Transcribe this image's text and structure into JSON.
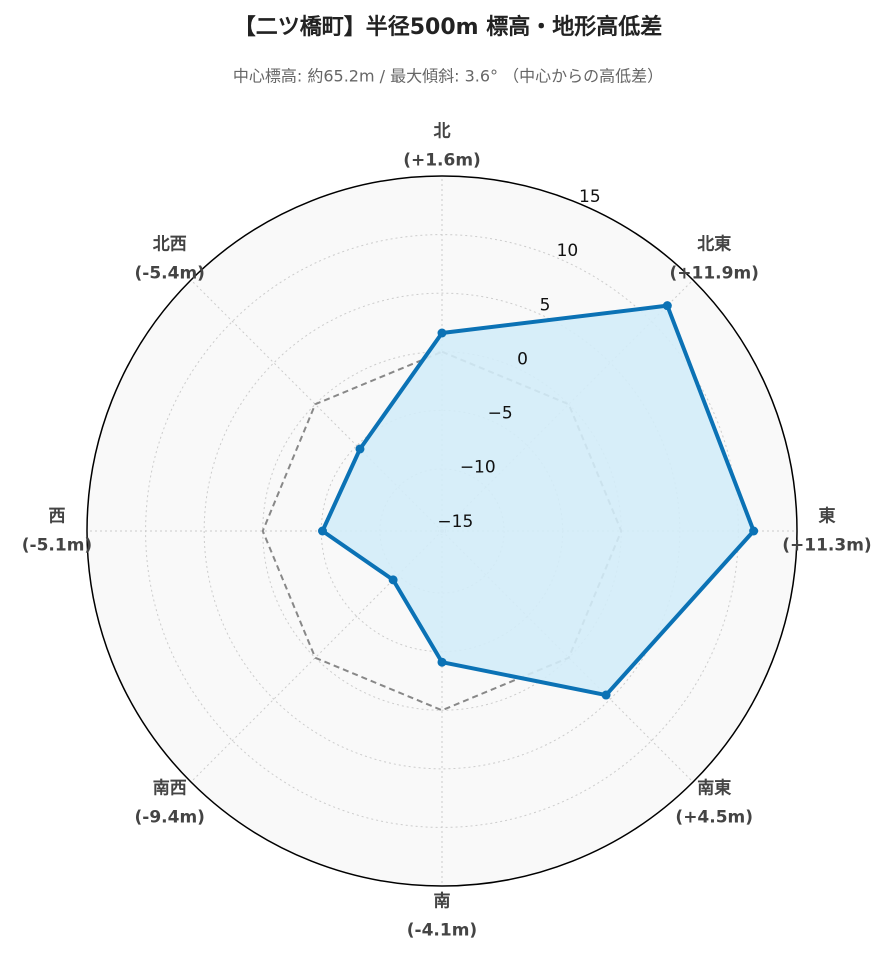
{
  "chart_data": {
    "type": "radar",
    "title": "【二ツ橋町】半径500m 標高・地形高低差",
    "subtitle": "中心標高: 約65.2m / 最大傾斜: 3.6° （中心からの高低差）",
    "categories": [
      "北",
      "北東",
      "東",
      "南東",
      "南",
      "南西",
      "西",
      "北西"
    ],
    "series": [
      {
        "color": "#0b72b5",
        "fill": "#d3ecf8",
        "values": [
          1.6,
          11.9,
          11.3,
          4.5,
          -4.1,
          -9.4,
          -5.1,
          -5.4
        ],
        "value_labels": [
          "(+1.6m)",
          "(+11.9m)",
          "(+11.3m)",
          "(+4.5m)",
          "(-4.1m)",
          "(-9.4m)",
          "(-5.1m)",
          "(-5.4m)"
        ]
      }
    ],
    "rlim": [
      -15.3,
      15
    ],
    "rticks": [
      {
        "value": -15,
        "label": "−15"
      },
      {
        "value": -10,
        "label": "−10"
      },
      {
        "value": -5,
        "label": "−5"
      },
      0,
      5,
      10,
      15
    ],
    "zero_reference": true,
    "grid": true
  }
}
